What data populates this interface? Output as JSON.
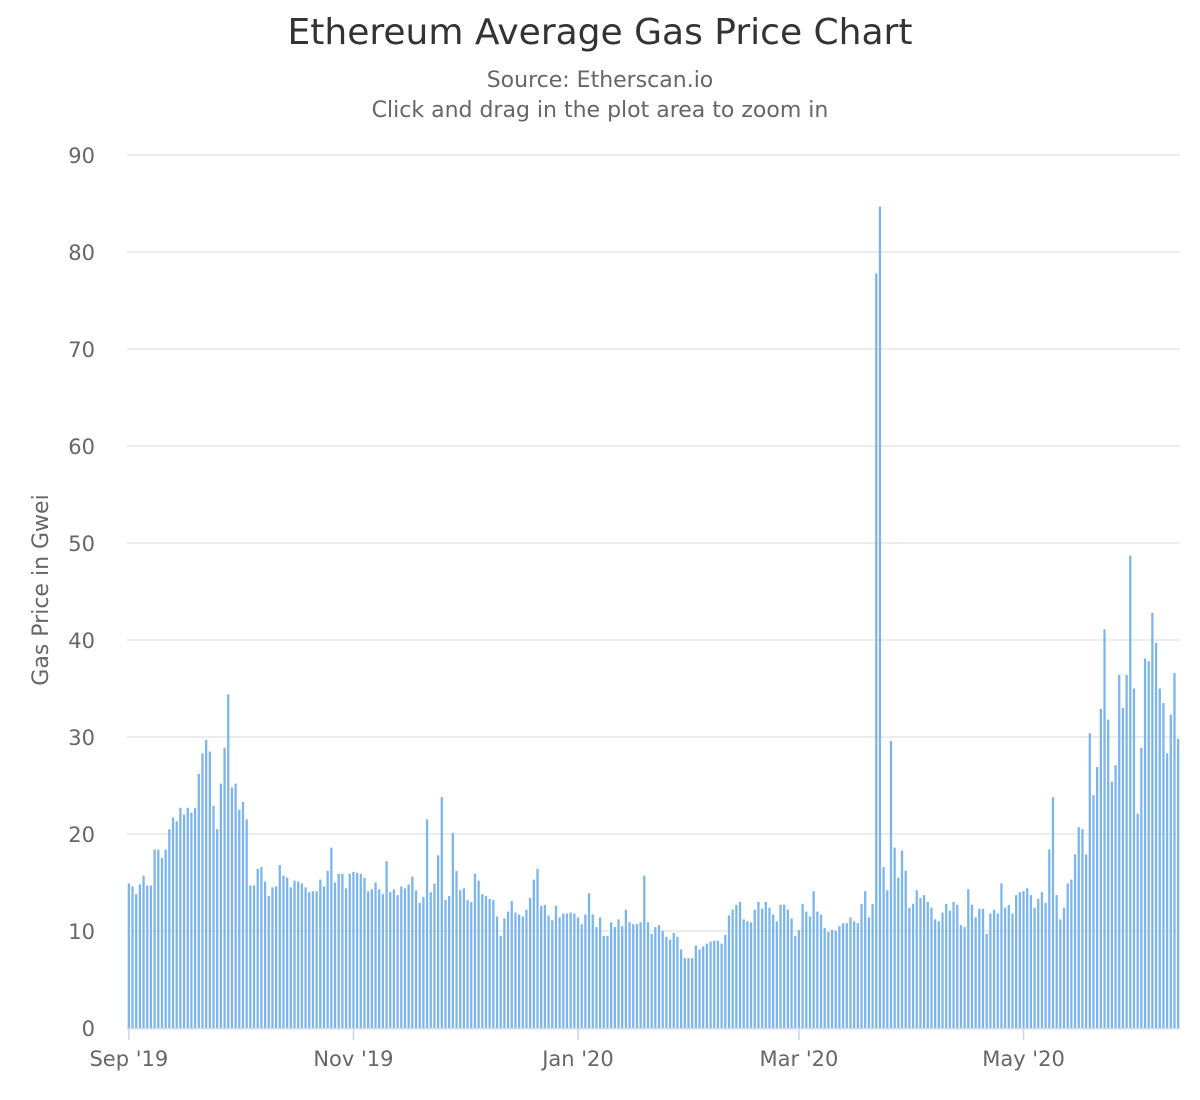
{
  "chart_data": {
    "type": "bar",
    "title": "Ethereum Average Gas Price Chart",
    "subtitle": "Source: Etherscan.io",
    "hint": "Click and drag in the plot area to zoom in",
    "ylabel": "Gas Price in Gwei",
    "xlabel": "",
    "ylim": [
      0,
      90
    ],
    "yticks": [
      0,
      10,
      20,
      30,
      40,
      50,
      60,
      70,
      80,
      90
    ],
    "xticks": [
      "Sep '19",
      "Nov '19",
      "Jan '20",
      "Mar '20",
      "May '20"
    ],
    "xtick_days": [
      0,
      61,
      122,
      182,
      243
    ],
    "x_start": "2019-08-28",
    "grid": true,
    "legend": "none",
    "bar_color": "#7cb5ec",
    "values": [
      14.9,
      14.6,
      13.8,
      14.8,
      15.7,
      14.7,
      14.7,
      18.4,
      18.4,
      17.5,
      18.4,
      20.5,
      21.7,
      21.3,
      22.7,
      22.0,
      22.7,
      22.2,
      22.7,
      26.2,
      28.3,
      29.7,
      28.5,
      22.9,
      20.5,
      25.2,
      28.9,
      34.4,
      24.8,
      25.2,
      22.5,
      23.3,
      21.5,
      14.7,
      14.7,
      16.4,
      16.6,
      15.1,
      13.6,
      14.5,
      14.6,
      16.8,
      15.7,
      15.5,
      14.5,
      15.2,
      15.1,
      14.9,
      14.5,
      14.0,
      14.1,
      14.1,
      15.3,
      14.6,
      16.2,
      18.6,
      15.0,
      15.9,
      15.9,
      14.4,
      15.9,
      16.1,
      16.0,
      15.9,
      15.5,
      14.1,
      14.3,
      15.0,
      14.3,
      13.8,
      17.2,
      14.0,
      14.3,
      13.7,
      14.6,
      14.4,
      14.8,
      15.6,
      14.2,
      12.9,
      13.5,
      21.5,
      14.0,
      14.9,
      17.8,
      23.8,
      13.2,
      13.6,
      20.1,
      16.2,
      14.2,
      14.4,
      13.2,
      13.0,
      15.9,
      15.2,
      13.8,
      13.6,
      13.3,
      13.2,
      11.5,
      9.5,
      11.3,
      12.0,
      13.1,
      11.9,
      11.7,
      11.5,
      12.2,
      13.4,
      15.3,
      16.4,
      12.6,
      12.7,
      11.6,
      11.1,
      12.6,
      11.4,
      11.8,
      11.8,
      11.9,
      11.8,
      11.4,
      10.7,
      11.7,
      13.9,
      11.7,
      10.4,
      11.4,
      9.5,
      9.5,
      10.9,
      10.4,
      11.2,
      10.5,
      12.2,
      10.9,
      10.7,
      10.7,
      10.9,
      15.7,
      10.9,
      9.7,
      10.4,
      10.6,
      10.0,
      9.4,
      9.1,
      9.8,
      9.4,
      8.1,
      7.2,
      7.2,
      7.2,
      8.5,
      8.1,
      8.4,
      8.7,
      8.9,
      9.0,
      9.0,
      8.7,
      9.6,
      11.6,
      12.2,
      12.7,
      13.0,
      11.2,
      11.0,
      10.9,
      12.2,
      13.0,
      12.3,
      13.0,
      12.4,
      11.7,
      11.0,
      12.7,
      12.7,
      12.2,
      11.3,
      9.5,
      10.1,
      12.8,
      12.0,
      11.5,
      14.1,
      12.0,
      11.7,
      10.3,
      9.9,
      10.1,
      10.0,
      10.5,
      10.8,
      10.8,
      11.4,
      11.0,
      10.8,
      12.8,
      14.1,
      11.4,
      12.8,
      77.8,
      84.7,
      16.6,
      14.2,
      29.6,
      18.6,
      15.5,
      18.3,
      16.2,
      12.4,
      12.8,
      14.2,
      13.4,
      13.7,
      13.0,
      12.4,
      11.2,
      11.0,
      11.9,
      12.8,
      12.1,
      13.0,
      12.7,
      10.6,
      10.4,
      14.3,
      12.7,
      11.4,
      12.3,
      12.3,
      9.7,
      11.8,
      12.2,
      11.8,
      14.9,
      12.4,
      12.7,
      11.8,
      13.7,
      14.0,
      14.1,
      14.4,
      13.7,
      12.4,
      13.3,
      14.0,
      12.9,
      18.4,
      23.8,
      13.7,
      11.2,
      12.4,
      14.9,
      15.3,
      17.9,
      20.7,
      20.5,
      17.9,
      30.4,
      24.0,
      26.9,
      32.9,
      41.1,
      31.8,
      25.4,
      27.1,
      36.4,
      33.0,
      36.4,
      48.7,
      35.0,
      22.1,
      28.9,
      38.1,
      37.8,
      42.8,
      39.7,
      35.0,
      33.5,
      28.3,
      32.3,
      36.6,
      29.8
    ]
  }
}
